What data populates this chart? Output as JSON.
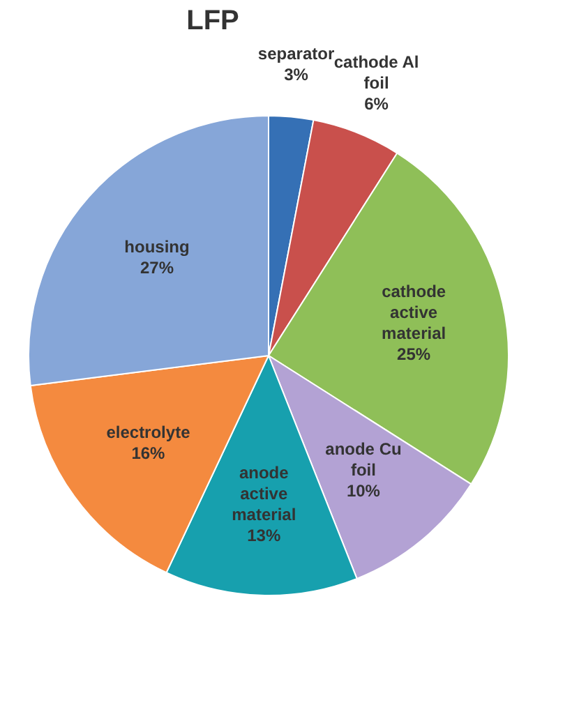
{
  "chart_data": {
    "type": "pie",
    "title": "LFP",
    "categories": [
      "separator",
      "cathode Al foil",
      "cathode active material",
      "anode Cu foil",
      "anode active material",
      "electrolyte",
      "housing"
    ],
    "values": [
      3,
      6,
      25,
      10,
      13,
      16,
      27
    ],
    "value_labels": [
      "3%",
      "6%",
      "25%",
      "10%",
      "13%",
      "16%",
      "27%"
    ],
    "colors": [
      "#3570b5",
      "#c9504c",
      "#8fbf58",
      "#b3a2d4",
      "#17a0ae",
      "#f48a3f",
      "#86a6d8"
    ],
    "legend": false
  }
}
